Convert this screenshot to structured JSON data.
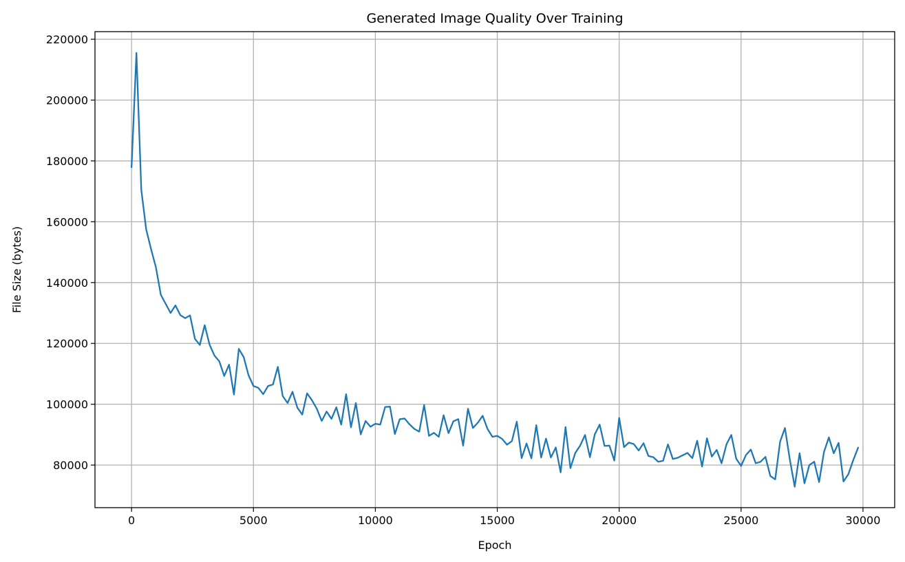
{
  "chart_data": {
    "type": "line",
    "title": "Generated Image Quality Over Training",
    "xlabel": "Epoch",
    "ylabel": "File Size (bytes)",
    "xlim": [
      -1500,
      31300
    ],
    "ylim": [
      66000,
      222500
    ],
    "xticks": [
      0,
      5000,
      10000,
      15000,
      20000,
      25000,
      30000
    ],
    "yticks": [
      80000,
      100000,
      120000,
      140000,
      160000,
      180000,
      200000,
      220000
    ],
    "grid": true,
    "series": [
      {
        "color": "#1f77b4",
        "x": [
          0,
          200,
          400,
          600,
          800,
          1000,
          1200,
          1400,
          1600,
          1800,
          2000,
          2200,
          2400,
          2600,
          2800,
          3000,
          3200,
          3400,
          3600,
          3800,
          4000,
          4200,
          4400,
          4600,
          4800,
          5000,
          5200,
          5400,
          5600,
          5800,
          6000,
          6200,
          6400,
          6600,
          6800,
          7000,
          7200,
          7400,
          7600,
          7800,
          8000,
          8200,
          8400,
          8600,
          8800,
          9000,
          9200,
          9400,
          9600,
          9800,
          10000,
          10200,
          10400,
          10600,
          10800,
          11000,
          11200,
          11400,
          11600,
          11800,
          12000,
          12200,
          12400,
          12600,
          12800,
          13000,
          13200,
          13400,
          13600,
          13800,
          14000,
          14200,
          14400,
          14600,
          14800,
          15000,
          15200,
          15400,
          15600,
          15800,
          16000,
          16200,
          16400,
          16600,
          16800,
          17000,
          17200,
          17400,
          17600,
          17800,
          18000,
          18200,
          18400,
          18600,
          18800,
          19000,
          19200,
          19400,
          19600,
          19800,
          20000,
          20200,
          20400,
          20600,
          20800,
          21000,
          21200,
          21400,
          21600,
          21800,
          22000,
          22200,
          22400,
          22600,
          22800,
          23000,
          23200,
          23400,
          23600,
          23800,
          24000,
          24200,
          24400,
          24600,
          24800,
          25000,
          25200,
          25400,
          25600,
          25800,
          26000,
          26200,
          26400,
          26600,
          26800,
          27000,
          27200,
          27400,
          27600,
          27800,
          28000,
          28200,
          28400,
          28600,
          28800,
          29000,
          29200,
          29400,
          29600,
          29800
        ],
        "y": [
          178000,
          215500,
          170500,
          157500,
          151000,
          145000,
          136000,
          133000,
          130000,
          132500,
          129300,
          128300,
          129200,
          121500,
          119500,
          126000,
          119600,
          116000,
          114100,
          109300,
          113000,
          103200,
          118200,
          115500,
          109500,
          106000,
          105400,
          103300,
          106000,
          106500,
          112300,
          102700,
          100400,
          104100,
          98900,
          96600,
          103600,
          101300,
          98500,
          94500,
          97600,
          95200,
          99000,
          93300,
          103300,
          92400,
          100400,
          90100,
          94500,
          92600,
          93600,
          93300,
          99100,
          99200,
          90200,
          95100,
          95300,
          93400,
          91900,
          91000,
          99700,
          89600,
          90600,
          89300,
          96400,
          90500,
          94400,
          95100,
          86400,
          98500,
          92200,
          93900,
          96200,
          91900,
          89300,
          89600,
          88600,
          86700,
          87900,
          94300,
          82300,
          87100,
          82200,
          93100,
          82500,
          88700,
          82500,
          85800,
          77600,
          92500,
          79000,
          84000,
          86400,
          89900,
          82600,
          90100,
          93300,
          86300,
          86400,
          81500,
          95500,
          85900,
          87400,
          86900,
          84800,
          87200,
          83000,
          82600,
          81100,
          81400,
          86800,
          82000,
          82400,
          83200,
          84000,
          82300,
          88000,
          79500,
          88800,
          82800,
          85000,
          80600,
          86800,
          89900,
          82100,
          79700,
          83300,
          85100,
          80600,
          81100,
          82700,
          76400,
          75300,
          87700,
          92200,
          81800,
          72900,
          83900,
          74000,
          80000,
          81100,
          74400,
          84300,
          89100,
          83900,
          87300,
          74600,
          77000,
          81600,
          85700
        ]
      }
    ]
  }
}
